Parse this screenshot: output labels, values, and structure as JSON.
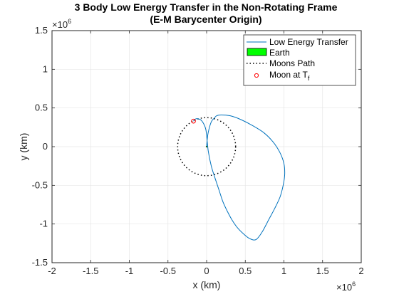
{
  "chart_data": {
    "type": "line",
    "title_line1": "3 Body Low Energy Transfer in the Non-Rotating Frame",
    "title_line2": "(E-M Barycenter Origin)",
    "xlabel": "x (km)",
    "ylabel": "y (km)",
    "xlim": [
      -2000000,
      2000000
    ],
    "ylim": [
      -1500000,
      1500000
    ],
    "x_ticks": [
      -2000000,
      -1500000,
      -1000000,
      -500000,
      0,
      500000,
      1000000,
      1500000,
      2000000
    ],
    "x_tick_labels": [
      "-2",
      "-1.5",
      "-1",
      "-0.5",
      "0",
      "0.5",
      "1",
      "1.5",
      "2"
    ],
    "y_ticks": [
      -1500000,
      -1000000,
      -500000,
      0,
      500000,
      1000000,
      1500000
    ],
    "y_tick_labels": [
      "-1.5",
      "-1",
      "-0.5",
      "0",
      "0.5",
      "1",
      "1.5"
    ],
    "x_exponent": {
      "base": "×10",
      "power": "6"
    },
    "y_exponent": {
      "base": "×10",
      "power": "6"
    },
    "grid": true,
    "legend_location": "top-right",
    "colors": {
      "transfer": "#0072bd",
      "earth": "#00ff00",
      "moons_path": "#000000",
      "moon_marker": "#ff0000"
    },
    "series": [
      {
        "name": "Low Energy Transfer",
        "x": [
          0,
          5000,
          20000,
          60000,
          100000,
          130000,
          190000,
          300000,
          420000,
          580000,
          740000,
          860000,
          950000,
          1000000,
          1010000,
          990000,
          950000,
          880000,
          800000,
          720000,
          640000,
          560000,
          480000,
          400000,
          330000,
          270000,
          210000,
          160000,
          110000,
          60000,
          20000,
          -10000,
          -60000,
          -110000,
          -150000,
          -170000
        ],
        "y": [
          0,
          60000,
          180000,
          320000,
          370000,
          400000,
          410000,
          400000,
          360000,
          280000,
          180000,
          60000,
          -80000,
          -220000,
          -360000,
          -500000,
          -650000,
          -800000,
          -950000,
          -1100000,
          -1200000,
          -1190000,
          -1130000,
          -1050000,
          -950000,
          -840000,
          -710000,
          -560000,
          -410000,
          -250000,
          -50000,
          220000,
          330000,
          360000,
          355000,
          330000
        ]
      },
      {
        "name": "Earth",
        "x": [
          0
        ],
        "y": [
          0
        ]
      },
      {
        "name": "Moons Path",
        "x": [
          0
        ],
        "y": [
          0
        ]
      },
      {
        "name": "Moon at T_f",
        "x": [
          -170000
        ],
        "y": [
          330000
        ]
      }
    ],
    "legend": [
      {
        "label": "Low Energy Transfer",
        "marker": "line"
      },
      {
        "label": "Earth",
        "marker": "patch"
      },
      {
        "label": "Moons Path",
        "marker": "dotted"
      },
      {
        "label": "Moon at T",
        "subscript": "f",
        "marker": "circle"
      }
    ]
  }
}
